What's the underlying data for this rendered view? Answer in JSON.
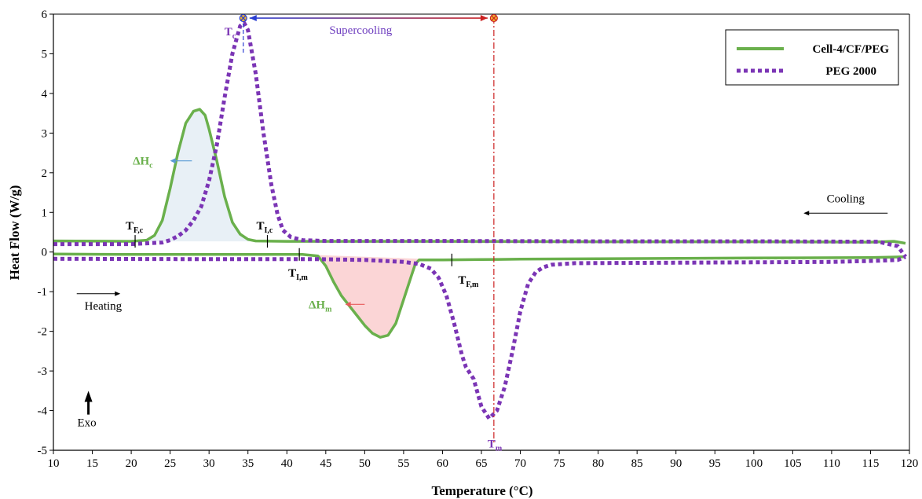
{
  "chart_data": {
    "type": "line",
    "xlabel": "Temperature (°C)",
    "ylabel": "Heat Flow (W/g)",
    "xlim": [
      10,
      120
    ],
    "ylim": [
      -5,
      6
    ],
    "x_ticks": [
      10,
      15,
      20,
      25,
      30,
      35,
      40,
      45,
      50,
      55,
      60,
      65,
      70,
      75,
      80,
      85,
      90,
      95,
      100,
      105,
      110,
      115,
      120
    ],
    "y_ticks": [
      -5,
      -4,
      -3,
      -2,
      -1,
      0,
      1,
      2,
      3,
      4,
      5,
      6
    ],
    "grid": false,
    "legend_position": "top-right",
    "series": [
      {
        "name": "Cell-4/CF/PEG",
        "color": "#6ab04c",
        "style": "solid",
        "segments": [
          [
            [
              10,
              0.28
            ],
            [
              20,
              0.27
            ],
            [
              22,
              0.3
            ],
            [
              23,
              0.42
            ],
            [
              24,
              0.8
            ],
            [
              25,
              1.6
            ],
            [
              26,
              2.5
            ],
            [
              27,
              3.25
            ],
            [
              28,
              3.55
            ],
            [
              28.8,
              3.6
            ],
            [
              29.5,
              3.45
            ],
            [
              30,
              3.1
            ],
            [
              31,
              2.3
            ],
            [
              32,
              1.4
            ],
            [
              33,
              0.75
            ],
            [
              34,
              0.45
            ],
            [
              35,
              0.32
            ],
            [
              36,
              0.28
            ],
            [
              40,
              0.27
            ],
            [
              60,
              0.27
            ],
            [
              80,
              0.26
            ],
            [
              100,
              0.26
            ],
            [
              115,
              0.25
            ],
            [
              118,
              0.27
            ],
            [
              119.5,
              0.22
            ]
          ],
          [
            [
              10,
              -0.05
            ],
            [
              20,
              -0.06
            ],
            [
              35,
              -0.06
            ],
            [
              42,
              -0.06
            ],
            [
              44,
              -0.1
            ],
            [
              45,
              -0.35
            ],
            [
              46,
              -0.75
            ],
            [
              47,
              -1.1
            ],
            [
              48,
              -1.35
            ],
            [
              49,
              -1.6
            ],
            [
              50,
              -1.85
            ],
            [
              51,
              -2.05
            ],
            [
              52,
              -2.15
            ],
            [
              53,
              -2.1
            ],
            [
              54,
              -1.8
            ],
            [
              55,
              -1.2
            ],
            [
              56,
              -0.6
            ],
            [
              56.5,
              -0.3
            ],
            [
              57,
              -0.2
            ],
            [
              60,
              -0.2
            ],
            [
              65,
              -0.19
            ],
            [
              70,
              -0.18
            ],
            [
              80,
              -0.17
            ],
            [
              100,
              -0.15
            ],
            [
              115,
              -0.14
            ],
            [
              119.5,
              -0.12
            ]
          ]
        ]
      },
      {
        "name": "PEG 2000",
        "color": "#7b35b5",
        "style": "dotted",
        "segments": [
          [
            [
              10,
              0.2
            ],
            [
              20,
              0.2
            ],
            [
              24,
              0.24
            ],
            [
              25,
              0.3
            ],
            [
              26,
              0.4
            ],
            [
              27,
              0.55
            ],
            [
              28,
              0.8
            ],
            [
              29,
              1.15
            ],
            [
              30,
              1.8
            ],
            [
              31,
              2.7
            ],
            [
              32,
              3.9
            ],
            [
              33,
              5.0
            ],
            [
              34,
              5.7
            ],
            [
              34.5,
              5.78
            ],
            [
              35,
              5.6
            ],
            [
              36,
              4.5
            ],
            [
              37,
              3.0
            ],
            [
              38,
              1.7
            ],
            [
              38.8,
              0.95
            ],
            [
              39.5,
              0.55
            ],
            [
              40.5,
              0.38
            ],
            [
              42,
              0.3
            ],
            [
              45,
              0.28
            ],
            [
              60,
              0.28
            ],
            [
              80,
              0.27
            ],
            [
              100,
              0.27
            ],
            [
              116,
              0.26
            ],
            [
              118.5,
              0.15
            ],
            [
              119.5,
              -0.12
            ]
          ],
          [
            [
              10,
              -0.17
            ],
            [
              30,
              -0.18
            ],
            [
              44,
              -0.18
            ],
            [
              50,
              -0.2
            ],
            [
              55,
              -0.25
            ],
            [
              57,
              -0.3
            ],
            [
              58.5,
              -0.42
            ],
            [
              59.5,
              -0.65
            ],
            [
              60.5,
              -1.1
            ],
            [
              61.5,
              -1.8
            ],
            [
              62.5,
              -2.6
            ],
            [
              63,
              -2.9
            ],
            [
              64,
              -3.2
            ],
            [
              65,
              -3.9
            ],
            [
              66,
              -4.2
            ],
            [
              67,
              -4.0
            ],
            [
              68,
              -3.4
            ],
            [
              69,
              -2.5
            ],
            [
              70,
              -1.5
            ],
            [
              71,
              -0.8
            ],
            [
              72,
              -0.5
            ],
            [
              73,
              -0.38
            ],
            [
              74,
              -0.32
            ],
            [
              77,
              -0.28
            ],
            [
              90,
              -0.27
            ],
            [
              110,
              -0.25
            ],
            [
              116,
              -0.22
            ],
            [
              118.5,
              -0.2
            ],
            [
              119.5,
              -0.12
            ]
          ]
        ]
      }
    ],
    "fills": [
      {
        "name": "crystallization-area",
        "color": "#e8f0f6",
        "points": [
          [
            20.5,
            0.27
          ],
          [
            22,
            0.3
          ],
          [
            23,
            0.42
          ],
          [
            24,
            0.8
          ],
          [
            25,
            1.6
          ],
          [
            26,
            2.5
          ],
          [
            27,
            3.25
          ],
          [
            28,
            3.55
          ],
          [
            28.8,
            3.6
          ],
          [
            29.5,
            3.45
          ],
          [
            30,
            3.1
          ],
          [
            31,
            2.3
          ],
          [
            32,
            1.4
          ],
          [
            33,
            0.75
          ],
          [
            34,
            0.45
          ],
          [
            35,
            0.32
          ],
          [
            36,
            0.28
          ],
          [
            37.5,
            0.27
          ]
        ]
      },
      {
        "name": "melting-area",
        "color": "#fbd5d6",
        "points": [
          [
            41.6,
            -0.06
          ],
          [
            42,
            -0.06
          ],
          [
            44,
            -0.1
          ],
          [
            45,
            -0.35
          ],
          [
            46,
            -0.75
          ],
          [
            47,
            -1.1
          ],
          [
            48,
            -1.35
          ],
          [
            49,
            -1.6
          ],
          [
            50,
            -1.85
          ],
          [
            51,
            -2.05
          ],
          [
            52,
            -2.15
          ],
          [
            53,
            -2.1
          ],
          [
            54,
            -1.8
          ],
          [
            55,
            -1.2
          ],
          [
            56,
            -0.6
          ],
          [
            56.5,
            -0.3
          ],
          [
            57,
            -0.2
          ],
          [
            61.2,
            -0.2
          ]
        ]
      }
    ],
    "markers": [
      {
        "name": "Tf-c",
        "x": 20.5,
        "y": 0.27,
        "label_main": "T",
        "label_sub": "F,c"
      },
      {
        "name": "Ti-c",
        "x": 37.5,
        "y": 0.27,
        "label_main": "T",
        "label_sub": "I,c"
      },
      {
        "name": "Ti-m",
        "x": 41.6,
        "y": -0.06,
        "label_main": "T",
        "label_sub": "I,m"
      },
      {
        "name": "Tf-m",
        "x": 61.2,
        "y": -0.2,
        "label_main": "T",
        "label_sub": "F,m"
      }
    ],
    "annotations": {
      "tc": {
        "main": "T",
        "sub": "c",
        "x": 34.4,
        "color": "#7b35b5"
      },
      "tm": {
        "main": "T",
        "sub": "m",
        "x": 66.6,
        "color": "#7b35b5"
      },
      "dhc": {
        "main": "ΔH",
        "sub": "c",
        "color": "#6ab04c",
        "arrow_color": "#5b9bd5"
      },
      "dhm": {
        "main": "ΔH",
        "sub": "m",
        "color": "#6ab04c",
        "arrow_color": "#e85a5a"
      },
      "supercooling": {
        "text": "Supercooling",
        "x_start": 34.4,
        "x_end": 66.6,
        "y": 5.9,
        "color": "#7040c0"
      },
      "cooling": "Cooling",
      "heating": "Heating",
      "exo": "Exo"
    },
    "colors": {
      "blue_line": "#2a3ed1",
      "red_line": "#cc2222",
      "marker_fill": "#f2b630"
    }
  }
}
